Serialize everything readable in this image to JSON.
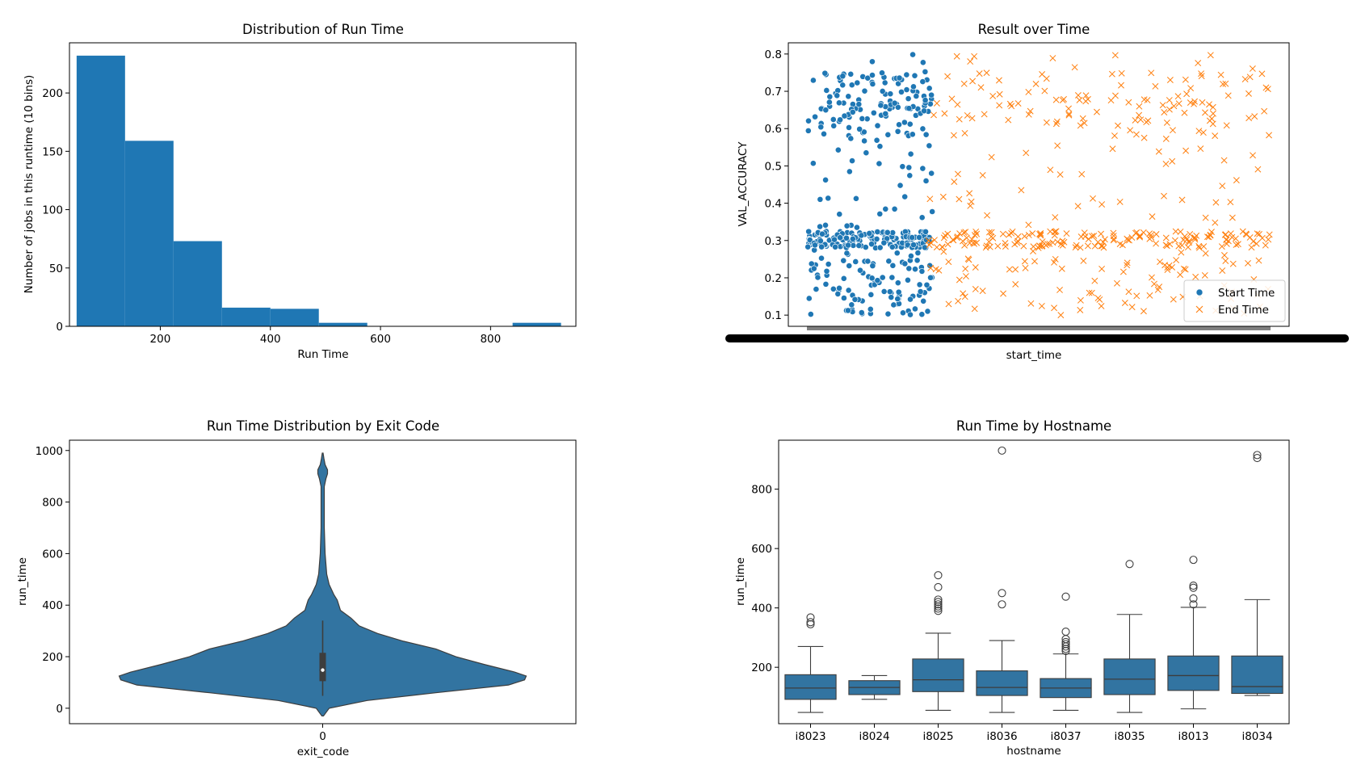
{
  "chart_data": [
    {
      "id": "histogram",
      "type": "bar",
      "title": "Distribution of Run Time",
      "xlabel": "Run Time",
      "ylabel": "Number of jobs in this runtime (10 bins)",
      "xlim": [
        35,
        955
      ],
      "ylim": [
        0,
        243
      ],
      "xticks": [
        200,
        400,
        600,
        800
      ],
      "yticks": [
        0,
        50,
        100,
        150,
        200
      ],
      "color": "#1f77b4",
      "bin_edges": [
        48,
        136,
        224,
        312,
        400,
        488,
        576,
        664,
        752,
        840,
        928
      ],
      "counts": [
        232,
        159,
        73,
        16,
        15,
        3,
        0,
        0,
        0,
        3
      ]
    },
    {
      "id": "scatter",
      "type": "scatter",
      "title": "Result over Time",
      "xlabel": "start_time",
      "ylabel": "VAL_ACCURACY",
      "ylim": [
        0.07,
        0.83
      ],
      "yticks": [
        0.1,
        0.2,
        0.3,
        0.4,
        0.5,
        0.6,
        0.7,
        0.8
      ],
      "legend": "lower-right",
      "series": [
        {
          "name": "Start Time",
          "marker": "circle",
          "color": "#1f77b4",
          "x_range": [
            0,
            0.27
          ]
        },
        {
          "name": "End Time",
          "marker": "x",
          "color": "#ff7f0e",
          "x_range": [
            0.26,
            1.0
          ]
        }
      ]
    },
    {
      "id": "violin",
      "type": "violin",
      "title": "Run Time Distribution by Exit Code",
      "xlabel": "exit_code",
      "ylabel": "run_time",
      "categories": [
        "0"
      ],
      "ylim": [
        -60,
        1040
      ],
      "yticks": [
        0,
        200,
        400,
        600,
        800,
        1000
      ],
      "color": "#3274a1",
      "range": [
        48,
        928
      ],
      "quartiles": [
        105,
        148,
        215
      ],
      "whiskers": [
        48,
        340
      ]
    },
    {
      "id": "boxplot",
      "type": "box",
      "title": "Run Time by Hostname",
      "xlabel": "hostname",
      "ylabel": "run_time",
      "ylim": [
        10,
        965
      ],
      "yticks": [
        200,
        400,
        600,
        800
      ],
      "color": "#3274a1",
      "categories": [
        "i8023",
        "i8024",
        "i8025",
        "i8036",
        "i8037",
        "i8035",
        "i8013",
        "i8034"
      ],
      "boxes": [
        {
          "whislo": 48,
          "q1": 92,
          "med": 130,
          "q3": 175,
          "whishi": 270,
          "fliers": [
            345,
            352,
            368
          ]
        },
        {
          "whislo": 92,
          "q1": 108,
          "med": 132,
          "q3": 155,
          "whishi": 172,
          "fliers": []
        },
        {
          "whislo": 55,
          "q1": 118,
          "med": 158,
          "q3": 228,
          "whishi": 315,
          "fliers": [
            390,
            398,
            405,
            412,
            420,
            428,
            470,
            510
          ]
        },
        {
          "whislo": 48,
          "q1": 105,
          "med": 132,
          "q3": 188,
          "whishi": 290,
          "fliers": [
            412,
            450,
            930
          ]
        },
        {
          "whislo": 55,
          "q1": 98,
          "med": 130,
          "q3": 162,
          "whishi": 245,
          "fliers": [
            255,
            262,
            270,
            278,
            285,
            295,
            320,
            438
          ]
        },
        {
          "whislo": 48,
          "q1": 108,
          "med": 160,
          "q3": 228,
          "whishi": 378,
          "fliers": [
            548
          ]
        },
        {
          "whislo": 60,
          "q1": 122,
          "med": 172,
          "q3": 238,
          "whishi": 402,
          "fliers": [
            412,
            432,
            468,
            475,
            562
          ]
        },
        {
          "whislo": 105,
          "q1": 112,
          "med": 135,
          "q3": 238,
          "whishi": 428,
          "fliers": [
            905,
            915
          ]
        }
      ]
    }
  ]
}
